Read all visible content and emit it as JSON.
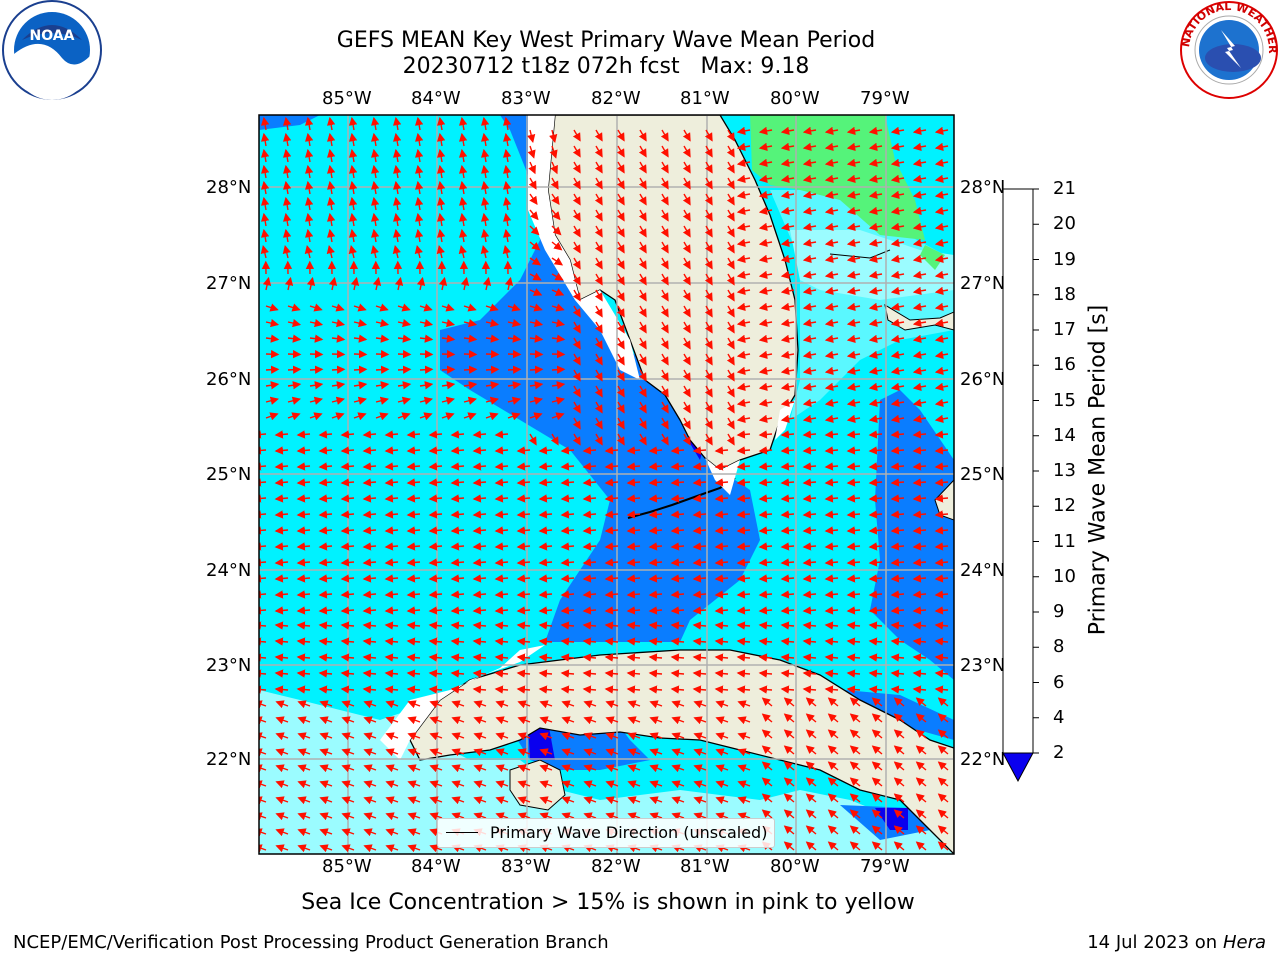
{
  "title_line1": "GEFS MEAN Key West Primary Wave Mean Period",
  "title_line2": "20230712 t18z 072h fcst   Max: 9.18",
  "subtitle": "Sea Ice Concentration > 15% is shown in pink to yellow",
  "footer_left": "NCEP/EMC/Verification Post Processing Product Generation Branch",
  "footer_right_date": "14 Jul 2023 on ",
  "footer_right_host": "Hera",
  "legend_label": "Primary Wave Direction (unscaled)",
  "logos": {
    "left": "NOAA",
    "right_ring": "NATIONAL WEATHER SERVICE"
  },
  "lon_labels": [
    "85°W",
    "84°W",
    "83°W",
    "82°W",
    "81°W",
    "80°W",
    "79°W"
  ],
  "lat_labels": [
    "28°N",
    "27°N",
    "26°N",
    "25°N",
    "24°N",
    "23°N",
    "22°N"
  ],
  "colorbar": {
    "label": "Primary Wave Mean Period [s]",
    "ticks": [
      "2",
      "4",
      "6",
      "8",
      "9",
      "10",
      "11",
      "12",
      "13",
      "14",
      "15",
      "16",
      "17",
      "18",
      "19",
      "20",
      "21"
    ],
    "colors": [
      "#0a7dff",
      "#00e8ff",
      "#5af8ff",
      "#9bfcff",
      "#55f37a",
      "#21d633",
      "#00e800",
      "#52e000",
      "#a6df00",
      "#d0ef00",
      "#f0f500",
      "#fff200",
      "#ffcf00",
      "#ffa700",
      "#ff8000",
      "#ff4800",
      "#ff1200"
    ],
    "extend_low_color": "#0a00ee"
  },
  "colors": {
    "land": "#eeeedc",
    "ocean_6_8": "#00f2ff",
    "ocean_4_6": "#0a7dff",
    "grid": "#b0b0b0",
    "arrow": "#ff1000"
  }
}
